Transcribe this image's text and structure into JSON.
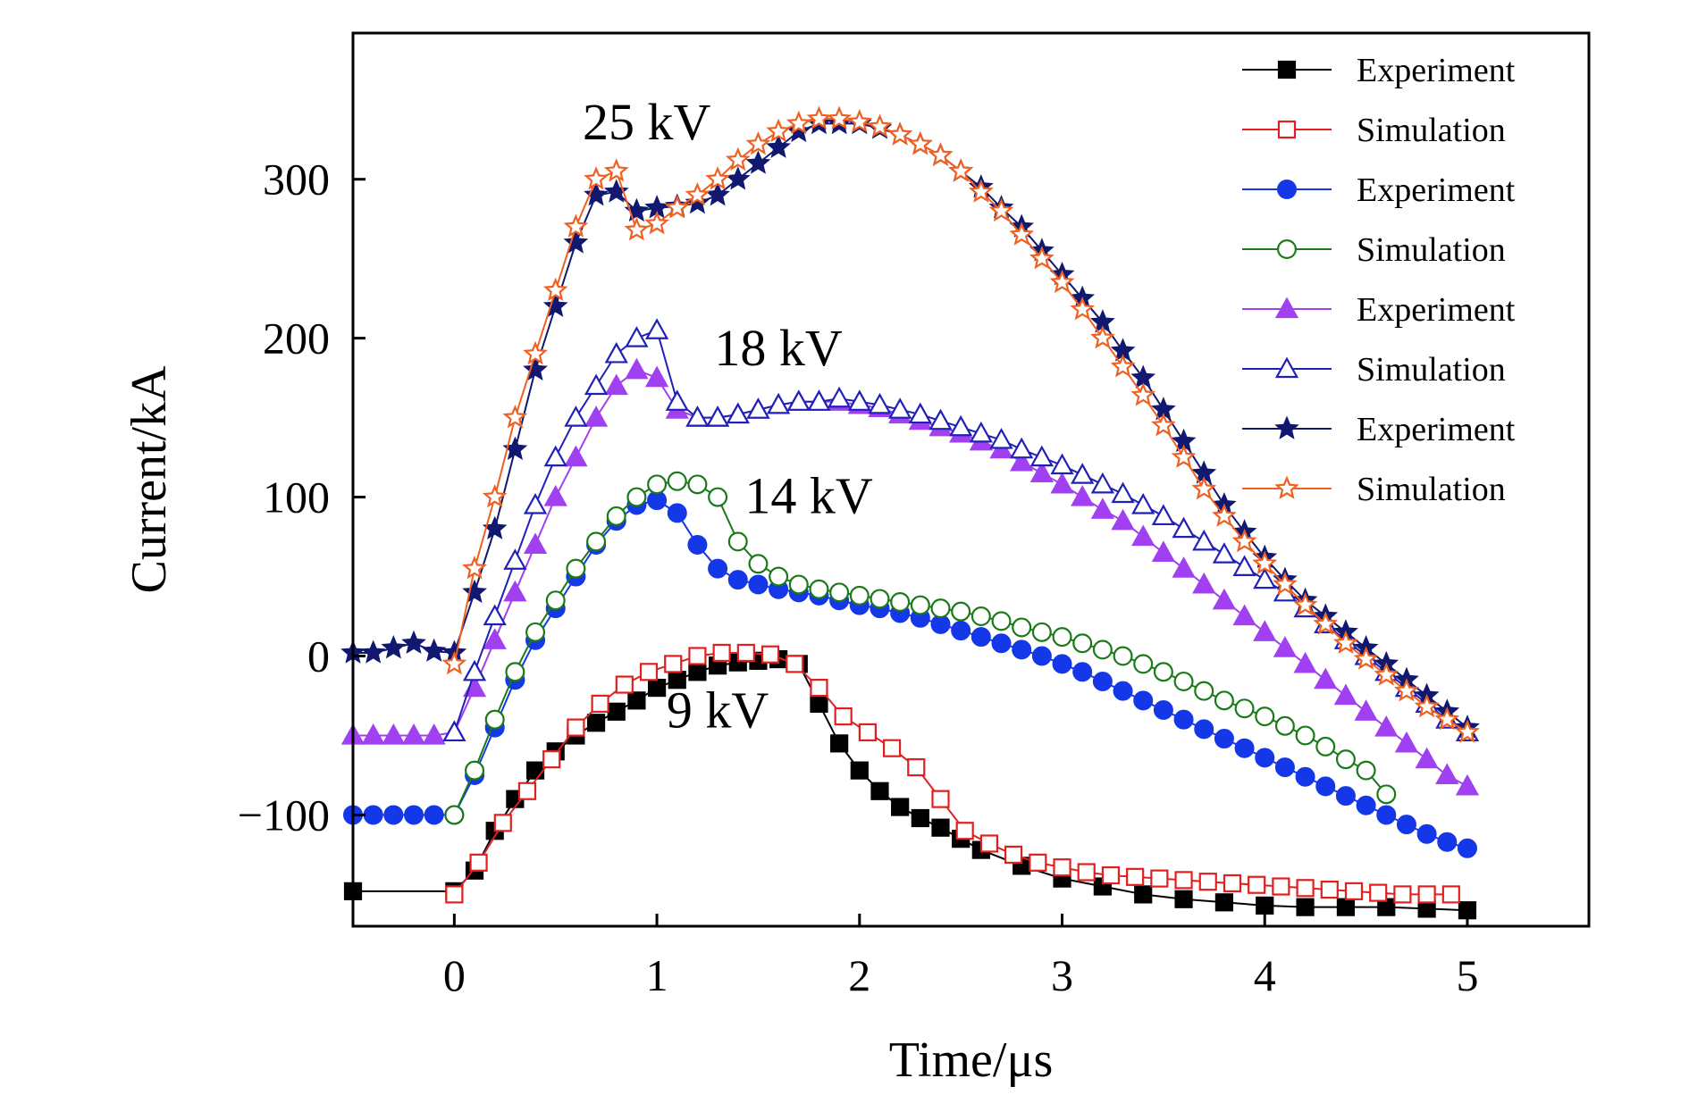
{
  "chart_data": {
    "type": "line",
    "title": "",
    "xlabel": "Time/μs",
    "ylabel": "Current/kA",
    "xlim": [
      -0.5,
      5.6
    ],
    "ylim": [
      -170,
      392
    ],
    "xticks": [
      0,
      1,
      2,
      3,
      4,
      5
    ],
    "yticks": [
      -100,
      0,
      100,
      200,
      300
    ],
    "xtick_labels": [
      "0",
      "1",
      "2",
      "3",
      "4",
      "5"
    ],
    "ytick_labels": [
      "−100",
      "0",
      "100",
      "200",
      "300"
    ],
    "grid": false,
    "legend_position": "top-right",
    "annotations": [
      {
        "text": "25 kV",
        "x": 0.95,
        "y": 325
      },
      {
        "text": "18 kV",
        "x": 1.6,
        "y": 183
      },
      {
        "text": "14 kV",
        "x": 1.75,
        "y": 90
      },
      {
        "text": "9 kV",
        "x": 1.3,
        "y": -45
      }
    ],
    "series": [
      {
        "name": "Experiment",
        "color": "#000000",
        "marker": "square",
        "filled": true,
        "x": [
          -0.5,
          0,
          0.1,
          0.2,
          0.3,
          0.4,
          0.5,
          0.6,
          0.7,
          0.8,
          0.9,
          1.0,
          1.1,
          1.2,
          1.3,
          1.4,
          1.5,
          1.6,
          1.7,
          1.8,
          1.9,
          2.0,
          2.1,
          2.2,
          2.3,
          2.4,
          2.5,
          2.6,
          2.8,
          3.0,
          3.2,
          3.4,
          3.6,
          3.8,
          4.0,
          4.2,
          4.4,
          4.6,
          4.8,
          5.0
        ],
        "y": [
          -148,
          -148,
          -135,
          -110,
          -90,
          -72,
          -60,
          -50,
          -42,
          -35,
          -28,
          -20,
          -15,
          -10,
          -6,
          -4,
          -3,
          -2,
          -5,
          -30,
          -55,
          -72,
          -85,
          -95,
          -102,
          -108,
          -115,
          -122,
          -132,
          -140,
          -145,
          -150,
          -153,
          -155,
          -157,
          -158,
          -158,
          -158,
          -159,
          -160
        ]
      },
      {
        "name": "Simulation",
        "color": "#e02020",
        "marker": "square",
        "filled": false,
        "x": [
          0,
          0.12,
          0.24,
          0.36,
          0.48,
          0.6,
          0.72,
          0.84,
          0.96,
          1.08,
          1.2,
          1.32,
          1.44,
          1.56,
          1.68,
          1.8,
          1.92,
          2.04,
          2.16,
          2.28,
          2.4,
          2.52,
          2.64,
          2.76,
          2.88,
          3.0,
          3.12,
          3.24,
          3.36,
          3.48,
          3.6,
          3.72,
          3.84,
          3.96,
          4.08,
          4.2,
          4.32,
          4.44,
          4.56,
          4.68,
          4.8,
          4.92
        ],
        "y": [
          -150,
          -130,
          -105,
          -85,
          -65,
          -45,
          -30,
          -18,
          -10,
          -5,
          0,
          2,
          2,
          1,
          -5,
          -20,
          -38,
          -48,
          -58,
          -70,
          -90,
          -110,
          -118,
          -125,
          -130,
          -133,
          -136,
          -138,
          -139,
          -140,
          -141,
          -142,
          -143,
          -144,
          -145,
          -146,
          -147,
          -148,
          -149,
          -150,
          -150,
          -150
        ]
      },
      {
        "name": "Experiment",
        "color": "#1438e8",
        "marker": "circle",
        "filled": true,
        "x": [
          -0.5,
          -0.4,
          -0.3,
          -0.2,
          -0.1,
          0,
          0.1,
          0.2,
          0.3,
          0.4,
          0.5,
          0.6,
          0.7,
          0.8,
          0.9,
          1.0,
          1.1,
          1.2,
          1.3,
          1.4,
          1.5,
          1.6,
          1.7,
          1.8,
          1.9,
          2.0,
          2.1,
          2.2,
          2.3,
          2.4,
          2.5,
          2.6,
          2.7,
          2.8,
          2.9,
          3.0,
          3.1,
          3.2,
          3.3,
          3.4,
          3.5,
          3.6,
          3.7,
          3.8,
          3.9,
          4.0,
          4.1,
          4.2,
          4.3,
          4.4,
          4.5,
          4.6,
          4.7,
          4.8,
          4.9,
          5.0
        ],
        "y": [
          -100,
          -100,
          -100,
          -100,
          -100,
          -100,
          -75,
          -45,
          -15,
          10,
          30,
          50,
          70,
          85,
          95,
          98,
          90,
          70,
          55,
          48,
          45,
          42,
          40,
          38,
          35,
          32,
          30,
          27,
          24,
          20,
          16,
          12,
          8,
          4,
          0,
          -5,
          -10,
          -16,
          -22,
          -28,
          -34,
          -40,
          -46,
          -52,
          -58,
          -64,
          -70,
          -76,
          -82,
          -88,
          -94,
          -100,
          -106,
          -112,
          -117,
          -121
        ]
      },
      {
        "name": "Simulation",
        "color": "#1a7a1a",
        "marker": "circle",
        "filled": false,
        "x": [
          0,
          0.1,
          0.2,
          0.3,
          0.4,
          0.5,
          0.6,
          0.7,
          0.8,
          0.9,
          1.0,
          1.1,
          1.2,
          1.3,
          1.4,
          1.5,
          1.6,
          1.7,
          1.8,
          1.9,
          2.0,
          2.1,
          2.2,
          2.3,
          2.4,
          2.5,
          2.6,
          2.7,
          2.8,
          2.9,
          3.0,
          3.1,
          3.2,
          3.3,
          3.4,
          3.5,
          3.6,
          3.7,
          3.8,
          3.9,
          4.0,
          4.1,
          4.2,
          4.3,
          4.4,
          4.5,
          4.6
        ],
        "y": [
          -100,
          -72,
          -40,
          -10,
          15,
          35,
          55,
          72,
          88,
          100,
          108,
          110,
          108,
          100,
          72,
          58,
          50,
          45,
          42,
          40,
          38,
          36,
          34,
          32,
          30,
          28,
          25,
          22,
          18,
          15,
          12,
          8,
          4,
          0,
          -5,
          -10,
          -16,
          -22,
          -28,
          -33,
          -38,
          -44,
          -50,
          -57,
          -65,
          -72,
          -87
        ]
      },
      {
        "name": "Experiment",
        "color": "#a040f0",
        "marker": "triangle",
        "filled": true,
        "x": [
          -0.5,
          -0.4,
          -0.3,
          -0.2,
          -0.1,
          0,
          0.1,
          0.2,
          0.3,
          0.4,
          0.5,
          0.6,
          0.7,
          0.8,
          0.9,
          1.0,
          1.1,
          1.2,
          1.3,
          1.4,
          1.5,
          1.6,
          1.7,
          1.8,
          1.9,
          2.0,
          2.1,
          2.2,
          2.3,
          2.4,
          2.5,
          2.6,
          2.7,
          2.8,
          2.9,
          3.0,
          3.1,
          3.2,
          3.3,
          3.4,
          3.5,
          3.6,
          3.7,
          3.8,
          3.9,
          4.0,
          4.1,
          4.2,
          4.3,
          4.4,
          4.5,
          4.6,
          4.7,
          4.8,
          4.9,
          5.0
        ],
        "y": [
          -50,
          -50,
          -50,
          -50,
          -50,
          -48,
          -20,
          10,
          40,
          70,
          100,
          125,
          150,
          170,
          180,
          175,
          155,
          150,
          150,
          152,
          155,
          158,
          160,
          160,
          160,
          158,
          156,
          152,
          148,
          144,
          140,
          135,
          130,
          122,
          115,
          108,
          100,
          92,
          85,
          75,
          65,
          55,
          45,
          35,
          25,
          15,
          5,
          -5,
          -15,
          -25,
          -35,
          -45,
          -55,
          -65,
          -75,
          -82
        ]
      },
      {
        "name": "Simulation",
        "color": "#2020b8",
        "marker": "triangle",
        "filled": false,
        "x": [
          0,
          0.1,
          0.2,
          0.3,
          0.4,
          0.5,
          0.6,
          0.7,
          0.8,
          0.9,
          1.0,
          1.1,
          1.2,
          1.3,
          1.4,
          1.5,
          1.6,
          1.7,
          1.8,
          1.9,
          2.0,
          2.1,
          2.2,
          2.3,
          2.4,
          2.5,
          2.6,
          2.7,
          2.8,
          2.9,
          3.0,
          3.1,
          3.2,
          3.3,
          3.4,
          3.5,
          3.6,
          3.7,
          3.8,
          3.9,
          4.0,
          4.1,
          4.2,
          4.3,
          4.4,
          4.5,
          4.6,
          4.7,
          4.8,
          4.9,
          5.0
        ],
        "y": [
          -48,
          -10,
          25,
          60,
          95,
          125,
          150,
          170,
          190,
          200,
          205,
          160,
          150,
          150,
          152,
          155,
          158,
          160,
          160,
          162,
          160,
          158,
          155,
          152,
          148,
          144,
          140,
          136,
          130,
          125,
          120,
          114,
          108,
          102,
          95,
          88,
          80,
          72,
          64,
          56,
          48,
          40,
          30,
          20,
          10,
          0,
          -10,
          -20,
          -30,
          -40,
          -48
        ]
      },
      {
        "name": "Experiment",
        "color": "#101870",
        "marker": "star",
        "filled": true,
        "x": [
          -0.5,
          -0.4,
          -0.3,
          -0.2,
          -0.1,
          0,
          0.1,
          0.2,
          0.3,
          0.4,
          0.5,
          0.6,
          0.7,
          0.8,
          0.9,
          1.0,
          1.1,
          1.2,
          1.3,
          1.4,
          1.5,
          1.6,
          1.7,
          1.8,
          1.9,
          2.0,
          2.1,
          2.2,
          2.3,
          2.4,
          2.5,
          2.6,
          2.7,
          2.8,
          2.9,
          3.0,
          3.1,
          3.2,
          3.3,
          3.4,
          3.5,
          3.6,
          3.7,
          3.8,
          3.9,
          4.0,
          4.1,
          4.2,
          4.3,
          4.4,
          4.5,
          4.6,
          4.7,
          4.8,
          4.9,
          5.0
        ],
        "y": [
          2,
          2,
          5,
          8,
          3,
          2,
          40,
          80,
          130,
          180,
          220,
          260,
          290,
          292,
          280,
          282,
          283,
          285,
          290,
          300,
          310,
          320,
          330,
          335,
          335,
          335,
          332,
          328,
          322,
          315,
          305,
          295,
          282,
          270,
          255,
          240,
          225,
          210,
          192,
          175,
          155,
          135,
          115,
          95,
          78,
          62,
          48,
          35,
          25,
          15,
          5,
          -5,
          -15,
          -25,
          -35,
          -45
        ]
      },
      {
        "name": "Simulation",
        "color": "#f06020",
        "marker": "star",
        "filled": false,
        "x": [
          0,
          0.1,
          0.2,
          0.3,
          0.4,
          0.5,
          0.6,
          0.7,
          0.8,
          0.9,
          1.0,
          1.1,
          1.2,
          1.3,
          1.4,
          1.5,
          1.6,
          1.7,
          1.8,
          1.9,
          2.0,
          2.1,
          2.2,
          2.3,
          2.4,
          2.5,
          2.6,
          2.7,
          2.8,
          2.9,
          3.0,
          3.1,
          3.2,
          3.3,
          3.4,
          3.5,
          3.6,
          3.7,
          3.8,
          3.9,
          4.0,
          4.1,
          4.2,
          4.3,
          4.4,
          4.5,
          4.6,
          4.7,
          4.8,
          4.9,
          5.0
        ],
        "y": [
          -5,
          55,
          100,
          150,
          190,
          230,
          270,
          300,
          305,
          268,
          272,
          282,
          290,
          300,
          312,
          322,
          330,
          335,
          338,
          338,
          336,
          333,
          328,
          322,
          315,
          305,
          292,
          280,
          265,
          250,
          235,
          218,
          200,
          182,
          164,
          145,
          125,
          105,
          88,
          72,
          58,
          45,
          32,
          20,
          8,
          -2,
          -12,
          -22,
          -32,
          -40,
          -48
        ]
      }
    ]
  }
}
